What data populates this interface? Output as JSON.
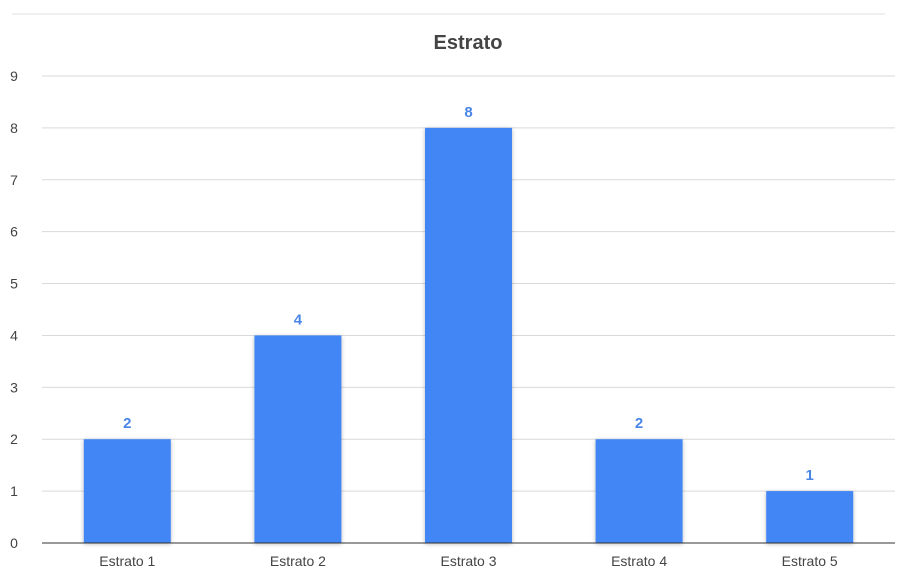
{
  "chart_data": {
    "type": "bar",
    "title": "Estrato",
    "xlabel": "",
    "ylabel": "",
    "categories": [
      "Estrato 1",
      "Estrato 2",
      "Estrato 3",
      "Estrato 4",
      "Estrato 5"
    ],
    "values": [
      2,
      4,
      8,
      2,
      1
    ],
    "data_labels": [
      "2",
      "4",
      "8",
      "2",
      "1"
    ],
    "ylim": [
      0,
      9
    ],
    "yticks": [
      "0",
      "1",
      "2",
      "3",
      "4",
      "5",
      "6",
      "7",
      "8",
      "9"
    ],
    "grid": true,
    "legend": "none",
    "colors": {
      "bar": "#4285f4",
      "data_label": "#4a86e8",
      "grid": "#d9d9d9",
      "axis_text": "#444444"
    }
  }
}
